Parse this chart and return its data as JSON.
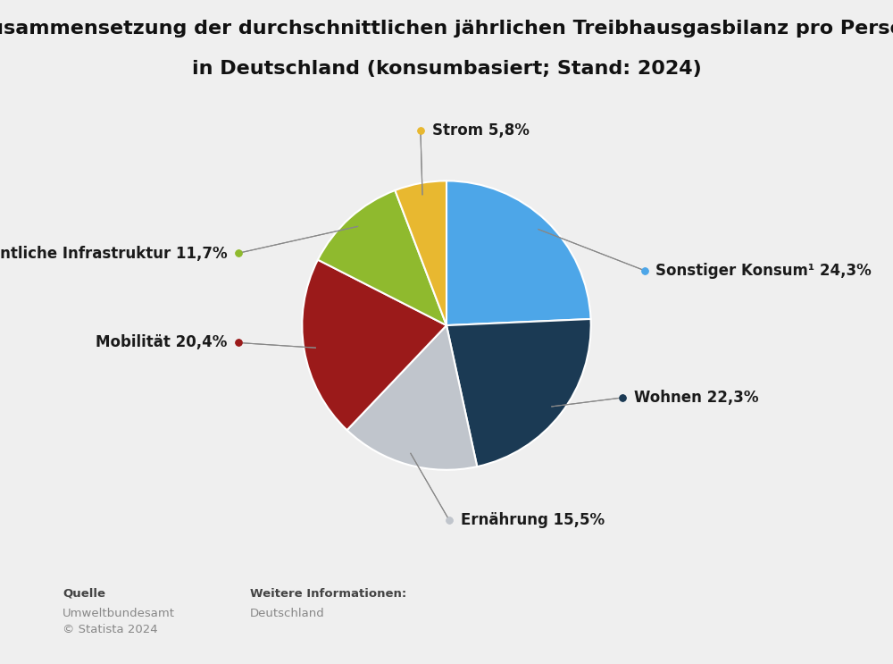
{
  "title_line1": "Zusammensetzung der durchschnittlichen jährlichen Treibhausgasbilanz pro Person",
  "title_line2": "in Deutschland (konsumbasiert; Stand: 2024)",
  "slices": [
    {
      "label": "Sonstiger Konsum¹",
      "pct": "24,3%",
      "value": 24.3,
      "color": "#4da6e8"
    },
    {
      "label": "Wohnen",
      "pct": "22,3%",
      "value": 22.3,
      "color": "#1b3a54"
    },
    {
      "label": "Ernährung",
      "pct": "15,5%",
      "value": 15.5,
      "color": "#c0c5cc"
    },
    {
      "label": "Mobilität",
      "pct": "20,4%",
      "value": 20.4,
      "color": "#9b1a1a"
    },
    {
      "label": "Öffentliche Infrastruktur",
      "pct": "11,7%",
      "value": 11.7,
      "color": "#8fba2e"
    },
    {
      "label": "Strom",
      "pct": "5,8%",
      "value": 5.8,
      "color": "#e8b830"
    }
  ],
  "background_color": "#efefef",
  "source_label": "Quelle",
  "source_text1": "Umweltbundesamt",
  "source_text2": "© Statista 2024",
  "further_info_label": "Weitere Informationen:",
  "further_info_text": "Deutschland",
  "title_fontsize": 16,
  "label_fontsize": 12
}
